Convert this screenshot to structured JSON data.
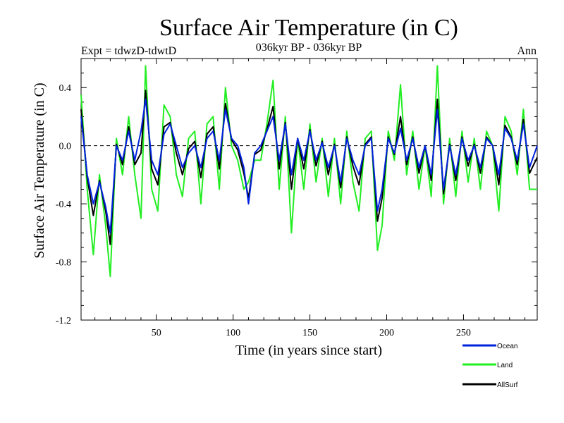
{
  "chart_data": {
    "type": "line",
    "title": "Surface Air Temperature (in C)",
    "subtitle": "036kyr BP - 036kyr BP",
    "left_label": "Expt = tdwzD-tdwtD",
    "right_label": "Ann",
    "xlabel": "Time (in years since start)",
    "ylabel": "Surface Air Temperature (in C)",
    "xlim": [
      1,
      298
    ],
    "ylim": [
      -1.2,
      0.6
    ],
    "x_ticks": [
      50,
      100,
      150,
      200,
      250
    ],
    "y_ticks": [
      0.4,
      0.0,
      -0.4,
      -0.8,
      -1.2
    ],
    "y_tick_labels": [
      "0.4",
      "0.0",
      "-0.4",
      "-0.8",
      "-1.2"
    ],
    "zero_line": true,
    "legend_position": "bottom-right",
    "series_colors": {
      "Ocean": "#0022dd",
      "Land": "#22ee22",
      "AllSurf": "#000000"
    },
    "series": [
      {
        "name": "Ocean",
        "x": [
          1,
          5,
          9,
          13,
          17,
          20,
          24,
          28,
          32,
          36,
          40,
          43,
          47,
          51,
          55,
          59,
          63,
          67,
          71,
          75,
          79,
          83,
          87,
          91,
          95,
          99,
          103,
          107,
          110,
          114,
          118,
          122,
          126,
          130,
          134,
          138,
          142,
          146,
          150,
          154,
          158,
          162,
          166,
          170,
          174,
          178,
          182,
          186,
          190,
          194,
          197,
          201,
          205,
          209,
          213,
          217,
          221,
          225,
          229,
          233,
          237,
          241,
          245,
          249,
          253,
          257,
          261,
          265,
          269,
          273,
          277,
          281,
          285,
          289,
          293,
          298
        ],
        "values": [
          0.2,
          -0.2,
          -0.4,
          -0.25,
          -0.42,
          -0.6,
          0.0,
          -0.1,
          0.1,
          -0.1,
          0.1,
          0.32,
          -0.1,
          -0.2,
          0.08,
          0.15,
          0.0,
          -0.15,
          -0.05,
          0.0,
          -0.15,
          0.05,
          0.1,
          -0.1,
          0.25,
          0.05,
          0.0,
          -0.15,
          -0.4,
          -0.05,
          0.0,
          0.1,
          0.2,
          -0.1,
          0.15,
          -0.2,
          0.05,
          -0.1,
          0.1,
          -0.1,
          0.02,
          -0.15,
          0.0,
          -0.25,
          0.05,
          -0.1,
          -0.2,
          0.0,
          0.05,
          -0.45,
          -0.3,
          0.05,
          -0.05,
          0.12,
          -0.1,
          0.05,
          -0.15,
          0.0,
          -0.2,
          0.25,
          -0.3,
          0.0,
          -0.2,
          0.05,
          -0.1,
          0.0,
          -0.15,
          0.05,
          0.0,
          -0.2,
          0.12,
          0.05,
          -0.1,
          0.15,
          -0.15,
          0.0
        ]
      },
      {
        "name": "Land",
        "x": [
          1,
          5,
          9,
          13,
          17,
          20,
          24,
          28,
          32,
          36,
          40,
          43,
          47,
          51,
          55,
          59,
          63,
          67,
          71,
          75,
          79,
          83,
          87,
          91,
          95,
          99,
          103,
          107,
          110,
          114,
          118,
          122,
          126,
          130,
          134,
          138,
          142,
          146,
          150,
          154,
          158,
          162,
          166,
          170,
          174,
          178,
          182,
          186,
          190,
          194,
          197,
          201,
          205,
          209,
          213,
          217,
          221,
          225,
          229,
          233,
          237,
          241,
          245,
          249,
          253,
          257,
          261,
          265,
          269,
          273,
          277,
          281,
          285,
          289,
          293,
          298
        ],
        "values": [
          0.35,
          -0.3,
          -0.75,
          -0.2,
          -0.55,
          -0.9,
          0.05,
          -0.2,
          0.2,
          -0.2,
          -0.5,
          0.55,
          -0.3,
          -0.45,
          0.28,
          0.2,
          -0.2,
          -0.35,
          0.05,
          0.1,
          -0.4,
          0.15,
          0.2,
          -0.3,
          0.4,
          0.0,
          -0.1,
          -0.3,
          -0.25,
          -0.1,
          -0.1,
          0.15,
          0.45,
          -0.3,
          0.2,
          -0.6,
          0.05,
          -0.3,
          0.15,
          -0.25,
          0.05,
          -0.35,
          0.05,
          -0.4,
          0.1,
          -0.25,
          -0.45,
          0.05,
          0.1,
          -0.72,
          -0.55,
          0.1,
          -0.1,
          0.42,
          -0.2,
          0.1,
          -0.3,
          0.0,
          -0.35,
          0.55,
          -0.4,
          0.05,
          -0.35,
          0.1,
          -0.25,
          0.05,
          -0.3,
          0.1,
          0.0,
          -0.45,
          0.2,
          0.1,
          -0.2,
          0.25,
          -0.3,
          -0.3
        ]
      },
      {
        "name": "AllSurf",
        "x": [
          1,
          5,
          9,
          13,
          17,
          20,
          24,
          28,
          32,
          36,
          40,
          43,
          47,
          51,
          55,
          59,
          63,
          67,
          71,
          75,
          79,
          83,
          87,
          91,
          95,
          99,
          103,
          107,
          110,
          114,
          118,
          122,
          126,
          130,
          134,
          138,
          142,
          146,
          150,
          154,
          158,
          162,
          166,
          170,
          174,
          178,
          182,
          186,
          190,
          194,
          197,
          201,
          205,
          209,
          213,
          217,
          221,
          225,
          229,
          233,
          237,
          241,
          245,
          249,
          253,
          257,
          261,
          265,
          269,
          273,
          277,
          281,
          285,
          289,
          293,
          298
        ],
        "values": [
          0.25,
          -0.22,
          -0.48,
          -0.24,
          -0.45,
          -0.68,
          0.01,
          -0.13,
          0.13,
          -0.13,
          -0.05,
          0.38,
          -0.16,
          -0.27,
          0.13,
          0.16,
          -0.05,
          -0.2,
          -0.02,
          0.03,
          -0.22,
          0.08,
          0.13,
          -0.16,
          0.29,
          0.04,
          -0.03,
          -0.19,
          -0.36,
          -0.06,
          -0.03,
          0.11,
          0.27,
          -0.16,
          0.16,
          -0.3,
          0.05,
          -0.16,
          0.11,
          -0.14,
          0.03,
          -0.2,
          0.01,
          -0.29,
          0.06,
          -0.14,
          -0.27,
          0.01,
          0.06,
          -0.52,
          -0.36,
          0.06,
          -0.06,
          0.2,
          -0.13,
          0.06,
          -0.19,
          0.0,
          -0.24,
          0.32,
          -0.33,
          0.01,
          -0.24,
          0.06,
          -0.14,
          0.01,
          -0.19,
          0.06,
          0.0,
          -0.27,
          0.14,
          0.06,
          -0.13,
          0.18,
          -0.19,
          -0.08
        ]
      }
    ]
  }
}
